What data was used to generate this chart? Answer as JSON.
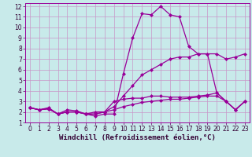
{
  "title": "",
  "xlabel": "Windchill (Refroidissement éolien,°C)",
  "ylabel": "",
  "bg_color": "#c8eaea",
  "grid_color": "#c896c8",
  "line_color": "#990099",
  "xlim": [
    -0.5,
    23.5
  ],
  "ylim": [
    1,
    12.3
  ],
  "xticks": [
    0,
    1,
    2,
    3,
    4,
    5,
    6,
    7,
    8,
    9,
    10,
    11,
    12,
    13,
    14,
    15,
    16,
    17,
    18,
    19,
    20,
    21,
    22,
    23
  ],
  "yticks": [
    1,
    2,
    3,
    4,
    5,
    6,
    7,
    8,
    9,
    10,
    11,
    12
  ],
  "lines": [
    {
      "x": [
        0,
        1,
        2,
        3,
        4,
        5,
        6,
        7,
        8,
        9,
        10,
        11,
        12,
        13,
        14,
        15,
        16,
        17,
        18,
        19,
        20,
        21,
        22,
        23
      ],
      "y": [
        2.4,
        2.2,
        2.4,
        1.8,
        2.2,
        2.1,
        1.8,
        1.6,
        1.8,
        1.8,
        5.6,
        9.0,
        11.3,
        11.2,
        12.0,
        11.2,
        11.0,
        8.2,
        7.5,
        7.5,
        3.8,
        3.0,
        2.2,
        3.0
      ]
    },
    {
      "x": [
        0,
        1,
        2,
        3,
        4,
        5,
        6,
        7,
        8,
        9,
        10,
        11,
        12,
        13,
        14,
        15,
        16,
        17,
        18,
        19,
        20,
        21,
        22,
        23
      ],
      "y": [
        2.4,
        2.2,
        2.3,
        1.8,
        2.0,
        2.0,
        1.8,
        1.8,
        2.0,
        2.5,
        3.5,
        4.5,
        5.5,
        6.0,
        6.5,
        7.0,
        7.2,
        7.2,
        7.5,
        7.5,
        7.5,
        7.0,
        7.2,
        7.5
      ]
    },
    {
      "x": [
        0,
        1,
        2,
        3,
        4,
        5,
        6,
        7,
        8,
        9,
        10,
        11,
        12,
        13,
        14,
        15,
        16,
        17,
        18,
        19,
        20,
        21,
        22,
        23
      ],
      "y": [
        2.4,
        2.2,
        2.3,
        1.8,
        2.0,
        2.0,
        1.8,
        2.0,
        2.0,
        3.0,
        3.2,
        3.3,
        3.3,
        3.5,
        3.5,
        3.4,
        3.4,
        3.4,
        3.5,
        3.6,
        3.8,
        3.0,
        2.2,
        3.0
      ]
    },
    {
      "x": [
        0,
        1,
        2,
        3,
        4,
        5,
        6,
        7,
        8,
        9,
        10,
        11,
        12,
        13,
        14,
        15,
        16,
        17,
        18,
        19,
        20,
        21,
        22,
        23
      ],
      "y": [
        2.4,
        2.2,
        2.3,
        1.8,
        2.0,
        2.0,
        1.8,
        1.8,
        2.0,
        2.2,
        2.5,
        2.7,
        2.9,
        3.0,
        3.1,
        3.2,
        3.2,
        3.3,
        3.4,
        3.5,
        3.5,
        3.0,
        2.2,
        3.0
      ]
    }
  ],
  "marker": "D",
  "markersize": 2.0,
  "linewidth": 0.9,
  "xlabel_fontsize": 6.5,
  "tick_fontsize": 5.5
}
